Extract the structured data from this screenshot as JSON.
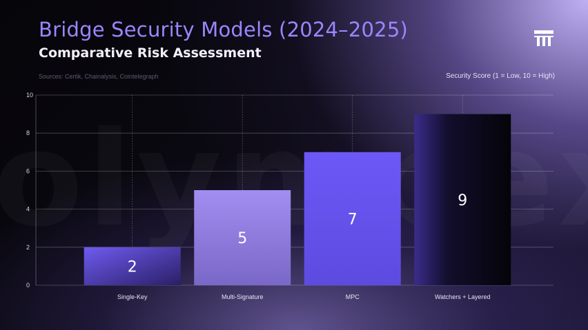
{
  "header": {
    "title": "Bridge Security Models (2024–2025)",
    "subtitle": "Comparative Risk Assessment",
    "sources": "Sources: Certik, Chainalysis, Cointelegraph",
    "watermark": "olympex",
    "logo_icon": "columns-logo-icon"
  },
  "chart_data": {
    "type": "bar",
    "title": "Bridge Security Models (2024–2025)",
    "subtitle": "Comparative Risk Assessment",
    "categories": [
      "Single-Key",
      "Multi-Signature",
      "MPC",
      "Watchers + Layered"
    ],
    "values": [
      2,
      5,
      7,
      9
    ],
    "series": [
      {
        "name": "Security Score (1 = Low, 10 = High)",
        "values": [
          2,
          5,
          7,
          9
        ]
      }
    ],
    "ylabel": "",
    "xlabel": "",
    "ylim": [
      0,
      10
    ],
    "yticks": [
      0,
      2,
      4,
      6,
      8,
      10
    ],
    "grid": true,
    "legend": "top-right",
    "data_labels": true,
    "colors": {
      "single_key": "#6a56ec",
      "multi_signature": "#9c88ea",
      "mpc": "#6a56f4",
      "watchers_layered": "#100c24",
      "title": "#9b86ff"
    }
  }
}
